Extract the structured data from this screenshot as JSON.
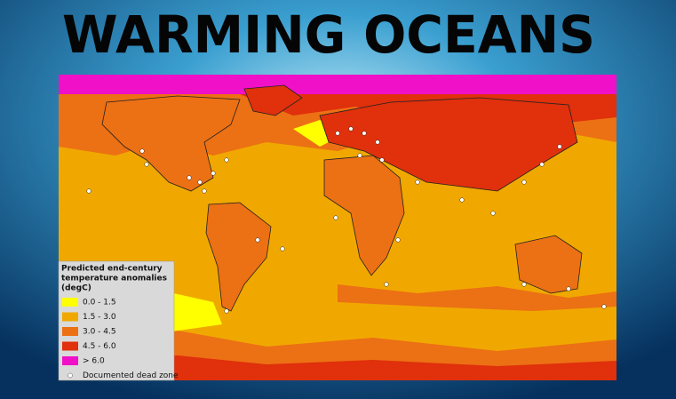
{
  "title": "WARMING OCEANS",
  "legend": {
    "title_lines": [
      "Predicted end-century",
      "temperature anomalies",
      "(degC)"
    ],
    "items": [
      {
        "label": "0.0 - 1.5",
        "color": "#ffff00"
      },
      {
        "label": "1.5 - 3.0",
        "color": "#f0a800"
      },
      {
        "label": "3.0 - 4.5",
        "color": "#ec7014"
      },
      {
        "label": "4.5 - 6.0",
        "color": "#e0300c"
      },
      {
        "label": "> 6.0",
        "color": "#f010c8"
      }
    ],
    "dead_zone_label": "Documented dead zone"
  }
}
